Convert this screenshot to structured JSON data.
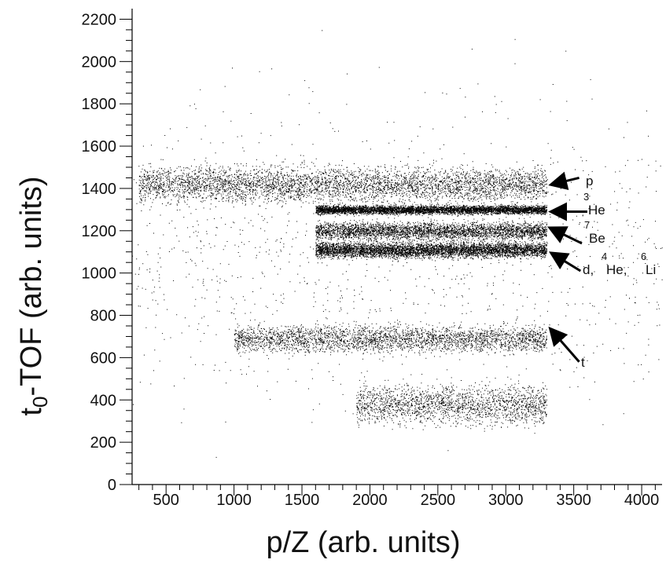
{
  "chart_data": {
    "type": "scatter",
    "title": "",
    "xlabel": "p/Z (arb. units)",
    "ylabel": {
      "main": "t",
      "subscript": "0",
      "rest": "-TOF (arb. units)"
    },
    "xlim": [
      250,
      4150
    ],
    "ylim": [
      0,
      2250
    ],
    "xticks": [
      500,
      1000,
      1500,
      2000,
      2500,
      3000,
      3500,
      4000
    ],
    "yticks": [
      0,
      200,
      400,
      600,
      800,
      1000,
      1200,
      1400,
      1600,
      1800,
      2000,
      2200
    ],
    "grid": false,
    "marker_color": "#000000",
    "bands": [
      {
        "x_range": [
          300,
          3300
        ],
        "y_center": 1420,
        "y_spread": 80,
        "density": 0.9
      },
      {
        "x_range": [
          1600,
          3300
        ],
        "y_center": 1300,
        "y_spread": 20,
        "density": 1.0
      },
      {
        "x_range": [
          1600,
          3300
        ],
        "y_center": 1200,
        "y_spread": 40,
        "density": 0.7
      },
      {
        "x_range": [
          1600,
          3300
        ],
        "y_center": 1110,
        "y_spread": 35,
        "density": 1.0
      },
      {
        "x_range": [
          1000,
          3300
        ],
        "y_center": 690,
        "y_spread": 60,
        "density": 0.6
      },
      {
        "x_range": [
          1900,
          3300
        ],
        "y_center": 380,
        "y_spread": 90,
        "density": 0.4
      },
      {
        "x_range": [
          250,
          4150
        ],
        "y_center": 1100,
        "y_spread": 700,
        "density": 0.25
      }
    ],
    "annotations": [
      {
        "label": "p",
        "superscript": "",
        "tip": [
          3300,
          1420
        ],
        "tail": [
          3540,
          1450
        ]
      },
      {
        "label": "He",
        "superscript": "3",
        "tip": [
          3300,
          1290
        ],
        "tail": [
          3600,
          1290
        ]
      },
      {
        "label": "Be",
        "superscript": "7",
        "tip": [
          3290,
          1210
        ],
        "tail": [
          3560,
          1140
        ]
      },
      {
        "label": "d,",
        "superscript": "",
        "tip": [
          3300,
          1090
        ],
        "tail": [
          3550,
          1010
        ]
      },
      {
        "label": "He,",
        "superscript": "4",
        "tip": null,
        "tail": null
      },
      {
        "label": "Li",
        "superscript": "6",
        "tip": null,
        "tail": null
      },
      {
        "label": "t",
        "superscript": "",
        "tip": [
          3290,
          730
        ],
        "tail": [
          3540,
          580
        ]
      }
    ]
  }
}
